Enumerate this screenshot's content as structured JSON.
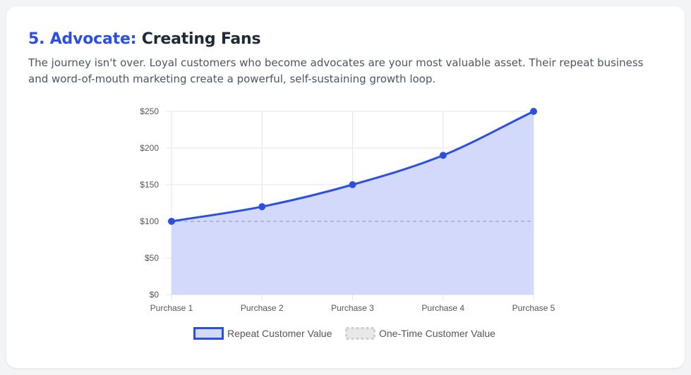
{
  "header": {
    "step_label": "5. Advocate:",
    "title": "Creating Fans",
    "description": "The journey isn't over. Loyal customers who become advocates are your most valuable asset. Their repeat business and word-of-mouth marketing create a powerful, self-sustaining growth loop."
  },
  "chart_data": {
    "type": "line",
    "categories": [
      "Purchase 1",
      "Purchase 2",
      "Purchase 3",
      "Purchase 4",
      "Purchase 5"
    ],
    "series": [
      {
        "name": "Repeat Customer Value",
        "values": [
          100,
          120,
          150,
          190,
          250
        ],
        "color": "#2b4fe0",
        "fill": "#d2d9fa",
        "style": "solid-area"
      },
      {
        "name": "One-Time Customer Value",
        "values": [
          100,
          100,
          100,
          100,
          100
        ],
        "color": "#b3b3d9",
        "style": "dashed"
      }
    ],
    "ylim": [
      0,
      250
    ],
    "yticks": [
      0,
      50,
      100,
      150,
      200,
      250
    ],
    "ytick_labels": [
      "$0",
      "$50",
      "$100",
      "$150",
      "$200",
      "$250"
    ],
    "grid": true,
    "legend": "bottom"
  }
}
